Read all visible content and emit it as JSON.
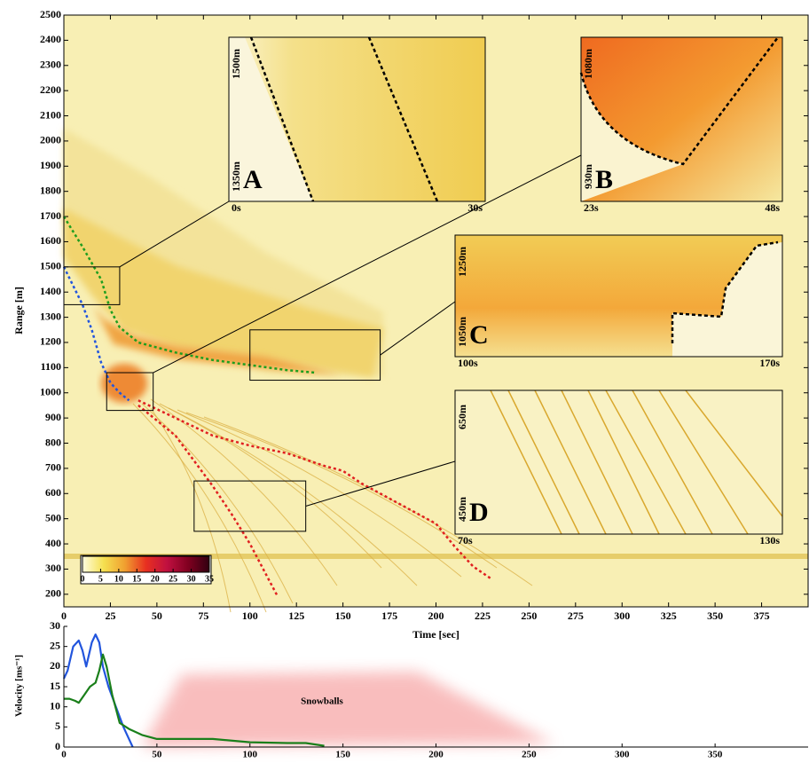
{
  "chart_data": [
    {
      "type": "heatmap",
      "x_label": "Time [sec]",
      "y_label": "Range [m]",
      "xlim": [
        0,
        400
      ],
      "ylim": [
        150,
        2500
      ],
      "xticks": [
        0,
        25,
        50,
        75,
        100,
        125,
        150,
        175,
        200,
        225,
        250,
        275,
        300,
        325,
        350,
        375
      ],
      "yticks": [
        200,
        300,
        400,
        500,
        600,
        700,
        800,
        900,
        1000,
        1100,
        1200,
        1300,
        1400,
        1500,
        1600,
        1700,
        1800,
        1900,
        2000,
        2100,
        2200,
        2300,
        2400,
        2500
      ],
      "colorbar": {
        "range": [
          0,
          35
        ],
        "ticks": [
          0,
          5,
          10,
          15,
          20,
          25,
          30,
          35
        ],
        "colors": [
          "#fffde0",
          "#f5e050",
          "#f0a030",
          "#e83020",
          "#c01040",
          "#800020",
          "#300010"
        ]
      },
      "series": [
        {
          "color": "#1f9e1f",
          "x": [
            0,
            10,
            20,
            25,
            30,
            40,
            60,
            80,
            100,
            120,
            135
          ],
          "values": [
            1700,
            1580,
            1450,
            1330,
            1260,
            1200,
            1160,
            1130,
            1110,
            1090,
            1080
          ]
        },
        {
          "color": "#2255dd",
          "x": [
            0,
            10,
            15,
            20,
            25,
            30,
            35
          ],
          "values": [
            1500,
            1350,
            1250,
            1120,
            1040,
            1000,
            970
          ]
        },
        {
          "color": "#e02020",
          "x": [
            40,
            60,
            80,
            100,
            120,
            140,
            150,
            160,
            180,
            200,
            210,
            220,
            230
          ],
          "values": [
            970,
            900,
            830,
            790,
            760,
            710,
            690,
            640,
            560,
            480,
            390,
            310,
            260
          ]
        },
        {
          "color": "#e02020",
          "x": [
            40,
            60,
            70,
            80,
            90,
            100,
            110,
            115
          ],
          "values": [
            950,
            830,
            730,
            630,
            520,
            400,
            260,
            190
          ]
        }
      ],
      "insets": [
        {
          "label": "A",
          "y_labels": [
            "1500m",
            "1350m"
          ],
          "x_labels": [
            "0s",
            "30s"
          ],
          "xrange": [
            0,
            30
          ],
          "yrange": [
            1350,
            1500
          ]
        },
        {
          "label": "B",
          "y_labels": [
            "1080m",
            "930m"
          ],
          "x_labels": [
            "23s",
            "48s"
          ],
          "xrange": [
            23,
            48
          ],
          "yrange": [
            930,
            1080
          ]
        },
        {
          "label": "C",
          "y_labels": [
            "1250m",
            "1050m"
          ],
          "x_labels": [
            "100s",
            "170s"
          ],
          "xrange": [
            100,
            170
          ],
          "yrange": [
            1050,
            1250
          ]
        },
        {
          "label": "D",
          "y_labels": [
            "650m",
            "450m"
          ],
          "x_labels": [
            "70s",
            "130s"
          ],
          "xrange": [
            70,
            130
          ],
          "yrange": [
            450,
            650
          ]
        }
      ]
    },
    {
      "type": "line",
      "y_label": "Velocity [ms⁻¹]",
      "annotation": "Snowballs",
      "xlim": [
        0,
        400
      ],
      "ylim": [
        0,
        30
      ],
      "xticks": [
        0,
        50,
        100,
        150,
        200,
        250,
        300,
        350
      ],
      "yticks": [
        0,
        5,
        10,
        15,
        20,
        25,
        30
      ],
      "series": [
        {
          "color": "#2255dd",
          "x": [
            0,
            2,
            5,
            8,
            10,
            12,
            15,
            17,
            19,
            21,
            24,
            28,
            32,
            35,
            37
          ],
          "values": [
            17,
            19,
            25,
            26.5,
            24,
            20,
            26,
            28,
            26,
            20,
            15,
            10,
            5,
            2,
            0
          ]
        },
        {
          "color": "#1a7f1a",
          "x": [
            0,
            3,
            6,
            8,
            11,
            14,
            17,
            19,
            21,
            23,
            26,
            30,
            35,
            42,
            50,
            65,
            80,
            100,
            120,
            130,
            140
          ],
          "values": [
            12,
            12,
            11.5,
            11,
            13,
            15,
            16,
            19,
            23,
            20,
            13,
            6,
            4.5,
            3,
            2,
            2,
            2,
            1.2,
            1,
            1,
            0.3
          ]
        }
      ]
    }
  ]
}
